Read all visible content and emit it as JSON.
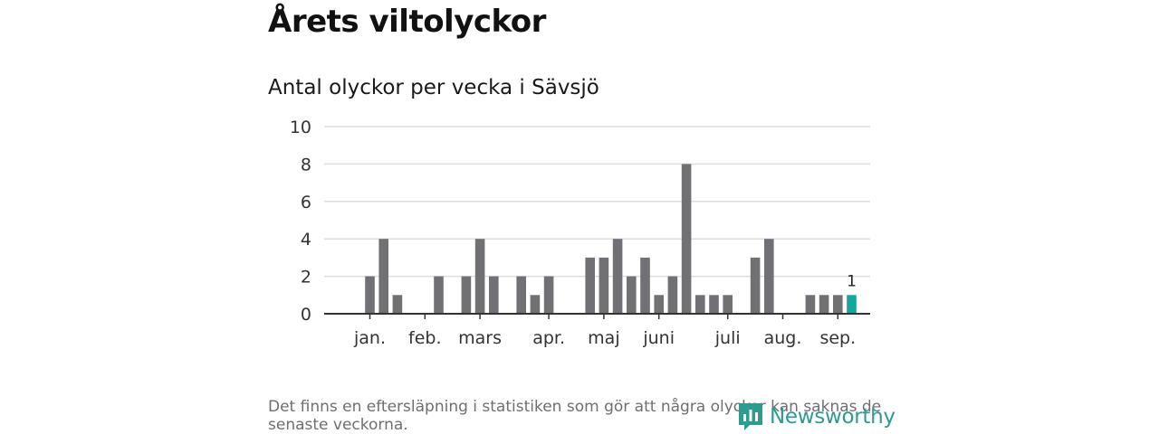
{
  "title": "Årets viltolyckor",
  "subtitle": "Antal olyckor per vecka i Sävsjö",
  "footnote": "Det finns en eftersläpning i statistiken som gör att några olyckor kan saknas de senaste veckorna.",
  "brand": {
    "name": "Newsworthy",
    "icon": "newsworthy-logo-icon",
    "color": "#2f9a8f"
  },
  "colors": {
    "bar": "#717075",
    "highlight": "#12a89d",
    "grid": "#dddddd",
    "axis": "#333333"
  },
  "chart_data": {
    "type": "bar",
    "title": "Antal olyckor per vecka i Sävsjö",
    "xlabel": "",
    "ylabel": "",
    "ylim": [
      0,
      10
    ],
    "yticks": [
      0,
      2,
      4,
      6,
      8,
      10
    ],
    "grid": true,
    "week_start": 1,
    "values": [
      0,
      2,
      4,
      1,
      0,
      0,
      2,
      0,
      2,
      4,
      2,
      0,
      2,
      1,
      2,
      0,
      0,
      3,
      3,
      4,
      2,
      3,
      1,
      2,
      8,
      1,
      1,
      1,
      0,
      3,
      4,
      0,
      0,
      1,
      1,
      1,
      1
    ],
    "highlight_index": 36,
    "highlight_label": "1",
    "month_labels": [
      {
        "label": "jan.",
        "week": 2
      },
      {
        "label": "feb.",
        "week": 6
      },
      {
        "label": "mars",
        "week": 10
      },
      {
        "label": "apr.",
        "week": 15
      },
      {
        "label": "maj",
        "week": 19
      },
      {
        "label": "juni",
        "week": 23
      },
      {
        "label": "juli",
        "week": 28
      },
      {
        "label": "aug.",
        "week": 32
      },
      {
        "label": "sep.",
        "week": 36
      }
    ]
  }
}
